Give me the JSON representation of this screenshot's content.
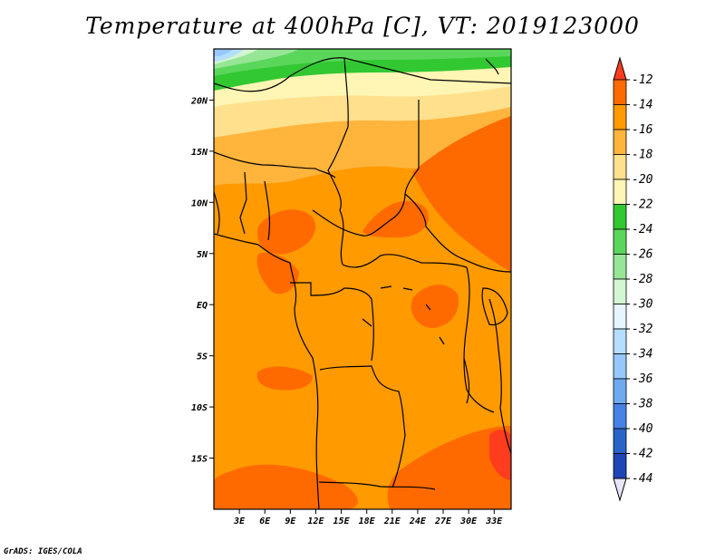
{
  "title": "Temperature at 400hPa [C], VT: 2019123000",
  "credit": "GrADS: IGES/COLA",
  "map": {
    "lon_range": [
      0,
      35
    ],
    "lat_range": [
      -20,
      25
    ],
    "x_ticks": [
      {
        "value": 3,
        "label": "3E"
      },
      {
        "value": 6,
        "label": "6E"
      },
      {
        "value": 9,
        "label": "9E"
      },
      {
        "value": 12,
        "label": "12E"
      },
      {
        "value": 15,
        "label": "15E"
      },
      {
        "value": 18,
        "label": "18E"
      },
      {
        "value": 21,
        "label": "21E"
      },
      {
        "value": 24,
        "label": "24E"
      },
      {
        "value": 27,
        "label": "27E"
      },
      {
        "value": 30,
        "label": "30E"
      },
      {
        "value": 33,
        "label": "33E"
      }
    ],
    "y_ticks": [
      {
        "value": 20,
        "label": "20N"
      },
      {
        "value": 15,
        "label": "15N"
      },
      {
        "value": 10,
        "label": "10N"
      },
      {
        "value": 5,
        "label": "5N"
      },
      {
        "value": 0,
        "label": "EQ"
      },
      {
        "value": -5,
        "label": "5S"
      },
      {
        "value": -10,
        "label": "10S"
      },
      {
        "value": -15,
        "label": "15S"
      }
    ]
  },
  "colorbar": {
    "levels": [
      -12,
      -14,
      -16,
      -18,
      -20,
      -22,
      -24,
      -26,
      -28,
      -30,
      -32,
      -34,
      -36,
      -38,
      -40,
      -42,
      -44
    ],
    "colors": [
      "#ff6a00",
      "#ff9a00",
      "#ffb43c",
      "#ffe08c",
      "#fff5b4",
      "#32c832",
      "#5ad75a",
      "#96e696",
      "#d2f5d2",
      "#e6f5ff",
      "#b4deff",
      "#96c8ff",
      "#6eaaf0",
      "#4682e6",
      "#2864c8",
      "#1e46b4",
      "#0a0a6e"
    ],
    "top_color": "#ff3c1e",
    "bottom_color": "#e6e6fa"
  }
}
